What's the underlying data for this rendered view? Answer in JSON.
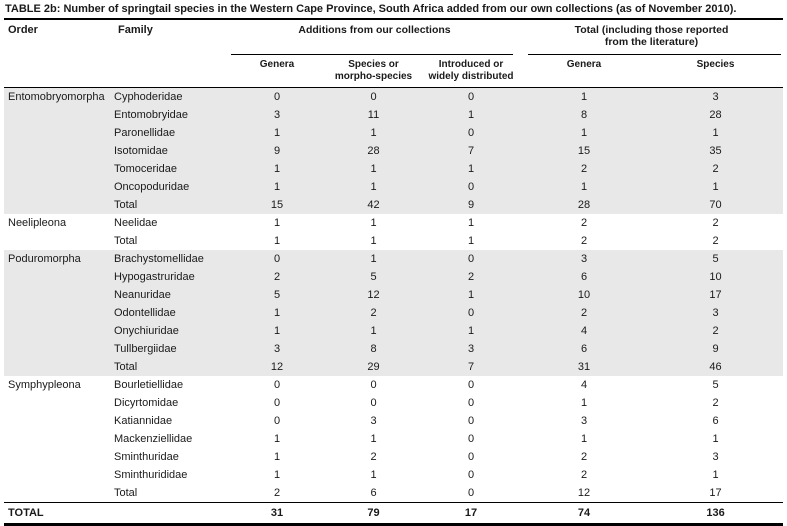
{
  "title": {
    "label": "TABLE 2b:",
    "text": "Number of springtail species in the Western Cape Province, South Africa added from our own collections (as of November 2010)."
  },
  "table": {
    "columns": {
      "order": "Order",
      "family": "Family",
      "group_additions": "Additions from our collections",
      "group_total": "Total (including those reported from the literature)",
      "sub": [
        "Genera",
        "Species or morpho-species",
        "Introduced or widely distributed",
        "Genera",
        "Species"
      ]
    },
    "sections": [
      {
        "order": "Entomobryomorpha",
        "shaded": true,
        "rows": [
          {
            "family": "Cyphoderidae",
            "values": [
              "0",
              "0",
              "0",
              "1",
              "3"
            ]
          },
          {
            "family": "Entomobryidae",
            "values": [
              "3",
              "11",
              "1",
              "8",
              "28"
            ]
          },
          {
            "family": "Paronellidae",
            "values": [
              "1",
              "1",
              "0",
              "1",
              "1"
            ]
          },
          {
            "family": "Isotomidae",
            "values": [
              "9",
              "28",
              "7",
              "15",
              "35"
            ]
          },
          {
            "family": "Tomoceridae",
            "values": [
              "1",
              "1",
              "1",
              "2",
              "2"
            ]
          },
          {
            "family": "Oncopoduridae",
            "values": [
              "1",
              "1",
              "0",
              "1",
              "1"
            ]
          },
          {
            "family": "Total",
            "values": [
              "15",
              "42",
              "9",
              "28",
              "70"
            ]
          }
        ]
      },
      {
        "order": "Neelipleona",
        "shaded": false,
        "rows": [
          {
            "family": "Neelidae",
            "values": [
              "1",
              "1",
              "1",
              "2",
              "2"
            ]
          },
          {
            "family": "Total",
            "values": [
              "1",
              "1",
              "1",
              "2",
              "2"
            ]
          }
        ]
      },
      {
        "order": "Poduromorpha",
        "shaded": true,
        "rows": [
          {
            "family": "Brachystomellidae",
            "values": [
              "0",
              "1",
              "0",
              "3",
              "5"
            ]
          },
          {
            "family": "Hypogastruridae",
            "values": [
              "2",
              "5",
              "2",
              "6",
              "10"
            ]
          },
          {
            "family": "Neanuridae",
            "values": [
              "5",
              "12",
              "1",
              "10",
              "17"
            ]
          },
          {
            "family": "Odontellidae",
            "values": [
              "1",
              "2",
              "0",
              "2",
              "3"
            ]
          },
          {
            "family": "Onychiuridae",
            "values": [
              "1",
              "1",
              "1",
              "4",
              "2"
            ]
          },
          {
            "family": "Tullbergiidae",
            "values": [
              "3",
              "8",
              "3",
              "6",
              "9"
            ]
          },
          {
            "family": "Total",
            "values": [
              "12",
              "29",
              "7",
              "31",
              "46"
            ]
          }
        ]
      },
      {
        "order": "Symphypleona",
        "shaded": false,
        "rows": [
          {
            "family": "Bourletiellidae",
            "values": [
              "0",
              "0",
              "0",
              "4",
              "5"
            ]
          },
          {
            "family": "Dicyrtomidae",
            "values": [
              "0",
              "0",
              "0",
              "1",
              "2"
            ]
          },
          {
            "family": "Katiannidae",
            "values": [
              "0",
              "3",
              "0",
              "3",
              "6"
            ]
          },
          {
            "family": "Mackenziellidae",
            "values": [
              "1",
              "1",
              "0",
              "1",
              "1"
            ]
          },
          {
            "family": "Sminthuridae",
            "values": [
              "1",
              "2",
              "0",
              "2",
              "3"
            ]
          },
          {
            "family": "Sminthurididae",
            "values": [
              "1",
              "1",
              "0",
              "2",
              "1"
            ]
          },
          {
            "family": "Total",
            "values": [
              "2",
              "6",
              "0",
              "12",
              "17"
            ]
          }
        ]
      }
    ],
    "grand_total": {
      "label": "TOTAL",
      "values": [
        "31",
        "79",
        "17",
        "74",
        "136"
      ]
    }
  },
  "colors": {
    "section_shade": "#e8e8e8",
    "rule": "#000000",
    "text": "#1a1a1a"
  }
}
